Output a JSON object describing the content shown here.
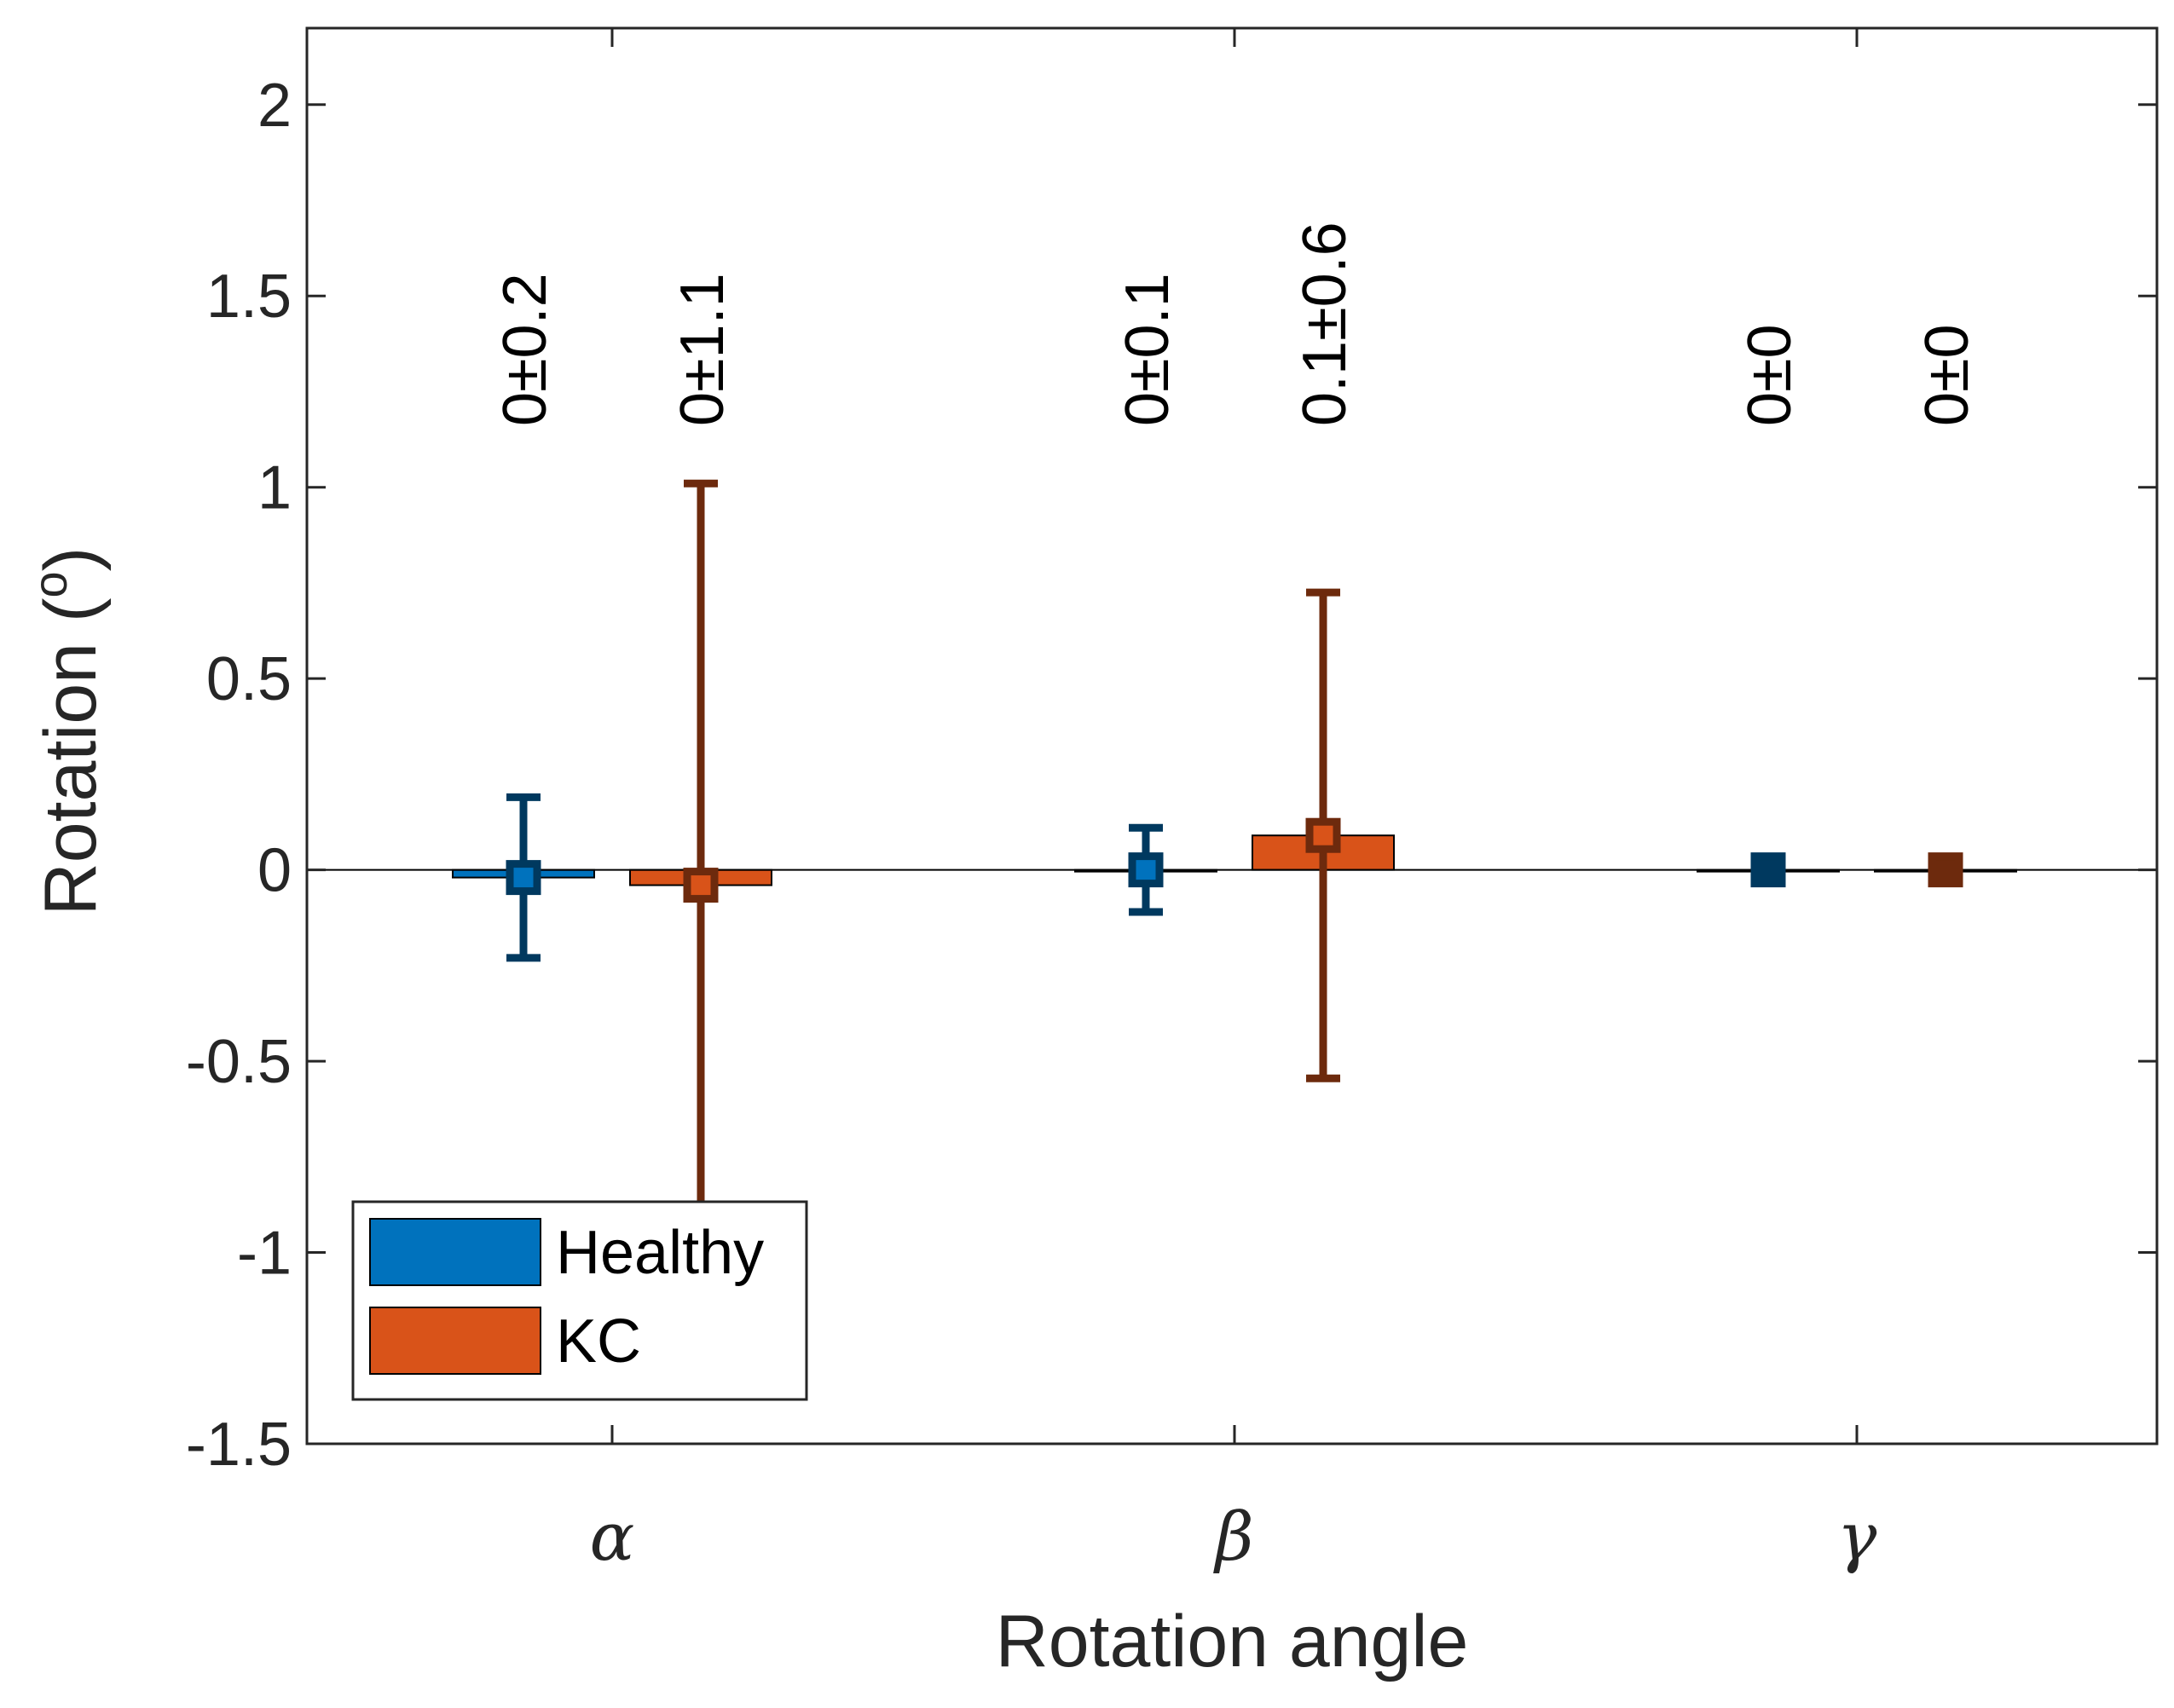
{
  "chart_data": {
    "type": "bar",
    "title": "",
    "xlabel": "Rotation angle",
    "ylabel": "Rotation (",
    "ylabel_superscript": "o",
    "ylabel_close": ")",
    "ylim": [
      -1.5,
      2.2
    ],
    "yticks": [
      -1.5,
      -1,
      -0.5,
      0,
      0.5,
      1,
      1.5,
      2
    ],
    "ytick_labels": [
      "-1.5",
      "-1",
      "-0.5",
      "0",
      "0.5",
      "1",
      "1.5",
      "2"
    ],
    "categories": [
      "α",
      "β",
      "γ"
    ],
    "series": [
      {
        "name": "Healthy",
        "color": "#0072bd",
        "error_color": "#00395f",
        "values": [
          -0.02,
          0.0,
          0.0
        ],
        "errors": [
          0.21,
          0.11,
          0.0
        ],
        "annotations": [
          "0±0.2",
          "0±0.1",
          "0±0"
        ]
      },
      {
        "name": "KC",
        "color": "#d95319",
        "error_color": "#6d2a0d",
        "values": [
          -0.04,
          0.09,
          0.0
        ],
        "errors": [
          1.05,
          0.635,
          0.0
        ],
        "annotations": [
          "0±1.1",
          "0.1±0.6",
          "0±0"
        ]
      }
    ],
    "legend_position": "bottom-left",
    "grid": false,
    "zero_line": true
  }
}
